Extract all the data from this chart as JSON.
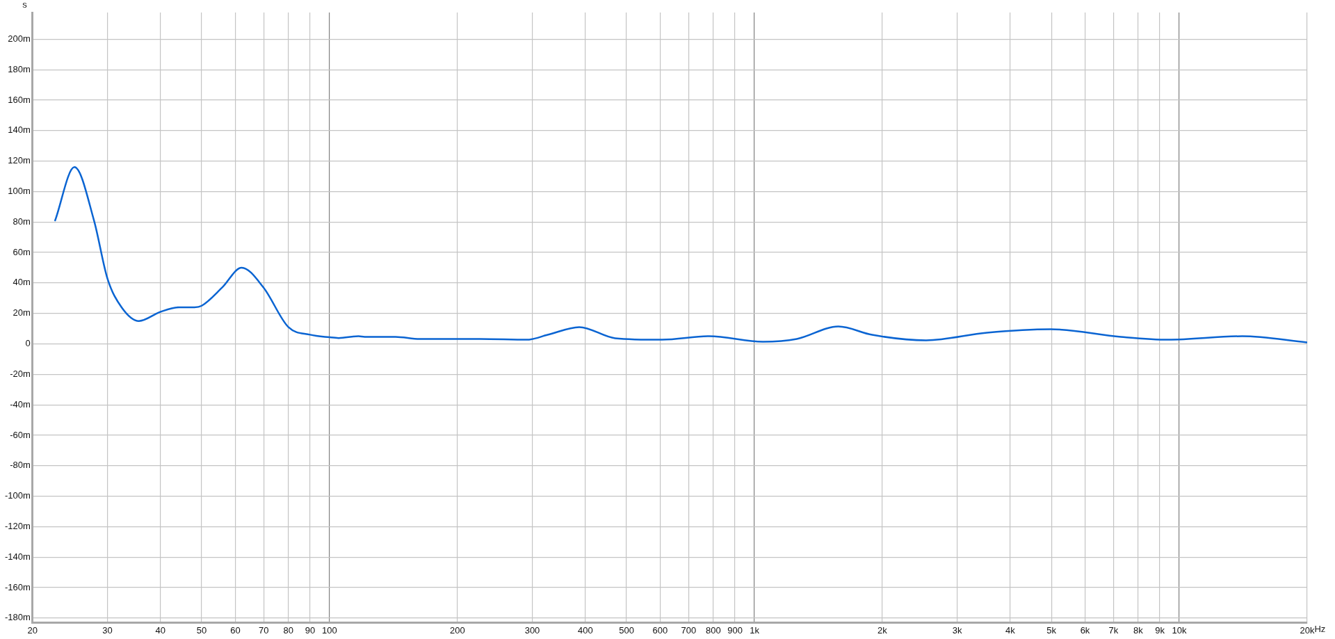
{
  "chart_data": {
    "type": "line",
    "ylabel": "s",
    "xlabel": "Hz",
    "log": "x",
    "grid": true,
    "marker": "none",
    "line_style": "solid",
    "xlim": [
      20,
      20000
    ],
    "xticks": [
      20,
      30,
      40,
      50,
      60,
      70,
      80,
      90,
      100,
      200,
      300,
      400,
      500,
      600,
      700,
      800,
      900,
      {
        "value": 1000,
        "label": "1k"
      },
      {
        "value": 2000,
        "label": "2k"
      },
      {
        "value": 3000,
        "label": "3k"
      },
      {
        "value": 4000,
        "label": "4k"
      },
      {
        "value": 5000,
        "label": "5k"
      },
      {
        "value": 6000,
        "label": "6k"
      },
      {
        "value": 7000,
        "label": "7k"
      },
      {
        "value": 8000,
        "label": "8k"
      },
      {
        "value": 9000,
        "label": "9k"
      },
      {
        "value": 10000,
        "label": "10k"
      },
      {
        "value": 20000,
        "label": "20k"
      }
    ],
    "ylim": [
      -183,
      217.5
    ],
    "yticks": [
      {
        "value": -180,
        "label": "-180m"
      },
      {
        "value": -160,
        "label": "-160m"
      },
      {
        "value": -140,
        "label": "-140m"
      },
      {
        "value": -120,
        "label": "-120m"
      },
      {
        "value": -100,
        "label": "-100m"
      },
      {
        "value": -80,
        "label": "-80m"
      },
      {
        "value": -60,
        "label": "-60m"
      },
      {
        "value": -40,
        "label": "-40m"
      },
      {
        "value": -20,
        "label": "-20m"
      },
      0,
      {
        "value": 20,
        "label": "20m"
      },
      {
        "value": 40,
        "label": "40m"
      },
      {
        "value": 60,
        "label": "60m"
      },
      {
        "value": 80,
        "label": "80m"
      },
      {
        "value": 100,
        "label": "100m"
      },
      {
        "value": 120,
        "label": "120m"
      },
      {
        "value": 140,
        "label": "140m"
      },
      {
        "value": 160,
        "label": "160m"
      },
      {
        "value": 180,
        "label": "180m"
      },
      {
        "value": 200,
        "label": "200m"
      }
    ],
    "series": [
      {
        "color": "#0a64d2",
        "x": [
          22.6,
          25.1,
          27.9,
          30,
          32.4,
          35.6,
          40,
          44.2,
          48.1,
          50,
          55.9,
          62.1,
          69.9,
          80,
          90,
          100,
          105,
          117,
          121,
          143,
          163,
          226,
          292,
          326,
          387,
          470,
          606,
          783,
          1047,
          1258,
          1576,
          1893,
          2536,
          3525,
          4982,
          7288,
          9410,
          14070,
          20000
        ],
        "values": [
          81,
          116,
          81,
          43,
          24,
          15,
          21,
          24,
          24,
          25,
          37,
          50,
          37,
          11,
          6,
          4.3,
          3.8,
          5,
          4.6,
          4.6,
          3.2,
          3.2,
          2.7,
          5.9,
          11,
          3.7,
          2.7,
          5,
          1.4,
          3.2,
          11.4,
          5.9,
          2.3,
          7.3,
          9.6,
          4.6,
          2.7,
          5,
          0.9
        ]
      }
    ]
  }
}
